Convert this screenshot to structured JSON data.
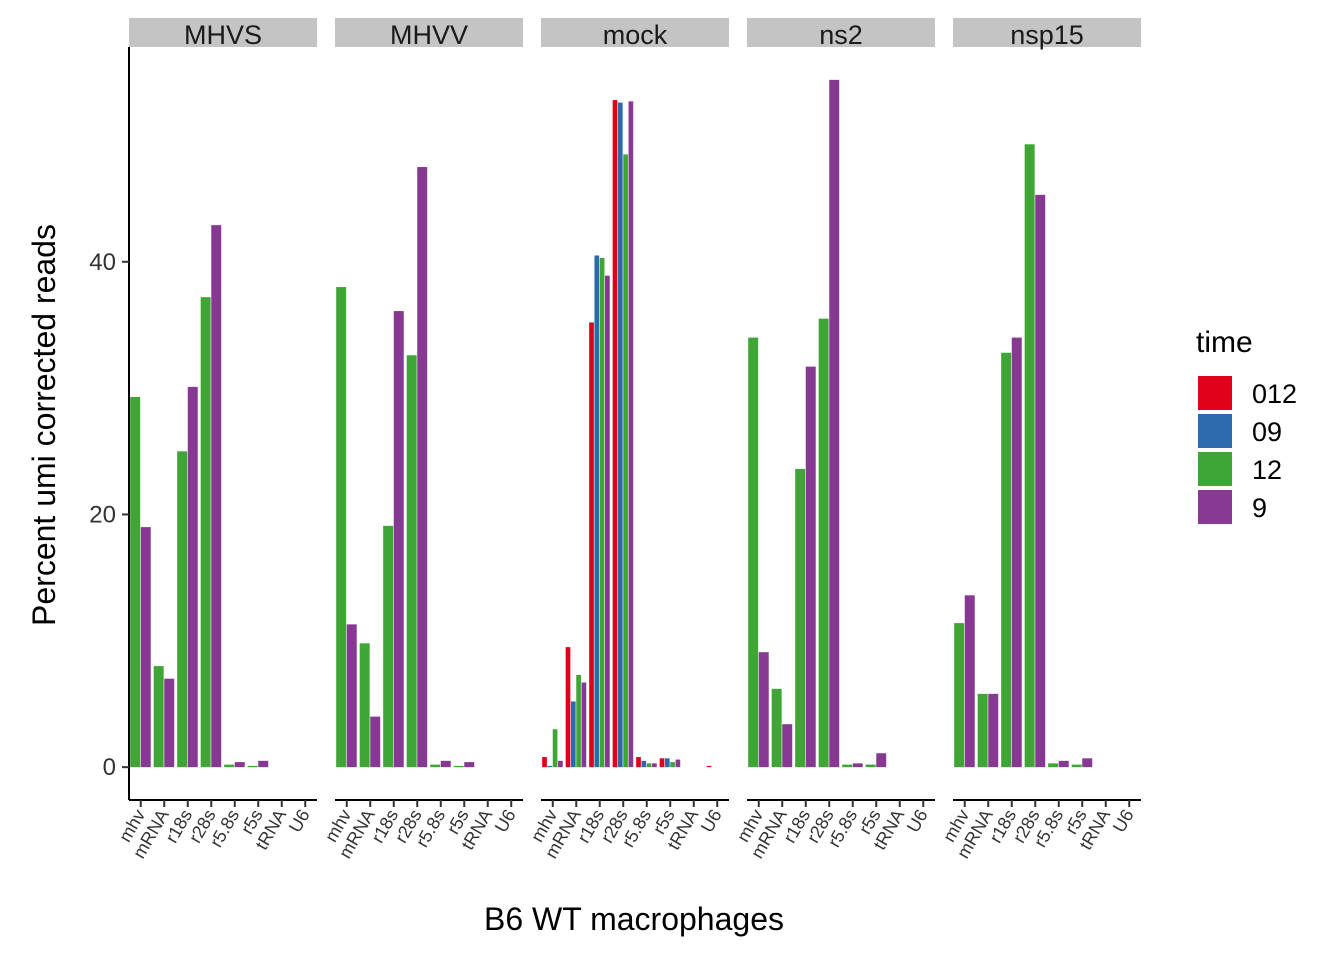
{
  "chart_data": {
    "type": "bar",
    "ylabel": "Percent umi corrected reads",
    "xlabel": "B6 WT macrophages",
    "ylim": [
      -2.6,
      57
    ],
    "yticks": [
      0,
      20,
      40
    ],
    "grid": false,
    "legend": {
      "title": "time",
      "position": "right",
      "entries": [
        {
          "name": "012",
          "color": "#e0001a"
        },
        {
          "name": "09",
          "color": "#2c6aad"
        },
        {
          "name": "12",
          "color": "#3fa535"
        },
        {
          "name": "9",
          "color": "#873892"
        }
      ]
    },
    "categories": [
      "mhv",
      "mRNA",
      "r18s",
      "r28s",
      "r5.8s",
      "r5s",
      "tRNA",
      "U6"
    ],
    "panels": [
      {
        "name": "MHVS",
        "series": [
          {
            "name": "12",
            "values": [
              29.3,
              8.0,
              25.0,
              37.2,
              0.2,
              0.1,
              0.0,
              0.0
            ]
          },
          {
            "name": "9",
            "values": [
              19.0,
              7.0,
              30.1,
              42.9,
              0.4,
              0.5,
              0.0,
              0.0
            ]
          }
        ]
      },
      {
        "name": "MHVV",
        "series": [
          {
            "name": "12",
            "values": [
              38.0,
              9.8,
              19.1,
              32.6,
              0.2,
              0.1,
              0.0,
              0.0
            ]
          },
          {
            "name": "9",
            "values": [
              11.3,
              4.0,
              36.1,
              47.5,
              0.5,
              0.4,
              0.0,
              0.0
            ]
          }
        ]
      },
      {
        "name": "mock",
        "series": [
          {
            "name": "012",
            "values": [
              0.8,
              9.5,
              35.2,
              52.8,
              0.8,
              0.7,
              0.0,
              0.1
            ]
          },
          {
            "name": "09",
            "values": [
              0.1,
              5.2,
              40.5,
              52.6,
              0.5,
              0.7,
              0.0,
              0.0
            ]
          },
          {
            "name": "12",
            "values": [
              3.0,
              7.3,
              40.3,
              48.5,
              0.3,
              0.4,
              0.0,
              0.0
            ]
          },
          {
            "name": "9",
            "values": [
              0.5,
              6.7,
              38.9,
              52.7,
              0.3,
              0.6,
              0.0,
              0.0
            ]
          }
        ]
      },
      {
        "name": "ns2",
        "series": [
          {
            "name": "12",
            "values": [
              34.0,
              6.2,
              23.6,
              35.5,
              0.2,
              0.2,
              0.0,
              0.0
            ]
          },
          {
            "name": "9",
            "values": [
              9.1,
              3.4,
              31.7,
              54.4,
              0.3,
              1.1,
              0.0,
              0.0
            ]
          }
        ]
      },
      {
        "name": "nsp15",
        "series": [
          {
            "name": "12",
            "values": [
              11.4,
              5.8,
              32.8,
              49.3,
              0.3,
              0.2,
              0.0,
              0.0
            ]
          },
          {
            "name": "9",
            "values": [
              13.6,
              5.8,
              34.0,
              45.3,
              0.5,
              0.7,
              0.0,
              0.0
            ]
          }
        ]
      }
    ]
  }
}
